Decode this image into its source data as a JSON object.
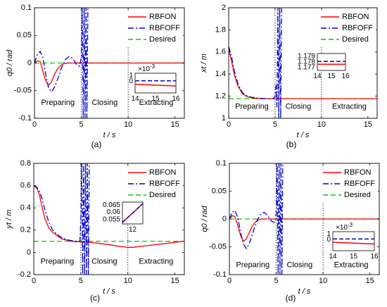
{
  "legend_labels": [
    "RBFON",
    "RBFOFF",
    "Desired"
  ],
  "colors": {
    "rbfon": "#ff0000",
    "rbfoff": "#0000cc",
    "desired": "#00cc00",
    "axis": "#000000"
  },
  "chart_data": [
    {
      "type": "line",
      "panel_label": "(a)",
      "xlabel": "t / s",
      "ylabel": "q0 / rad",
      "xlim": [
        0,
        16
      ],
      "ylim": [
        -0.1,
        0.1
      ],
      "xticks": [
        0,
        5,
        10,
        15
      ],
      "yticks": [
        -0.1,
        -0.05,
        0,
        0.05,
        0.1
      ],
      "ytick_labels": [
        "-0.1",
        "-0.05",
        "0",
        "0.05",
        "0.1"
      ],
      "phase_lines": [
        5,
        10
      ],
      "phases": [
        {
          "label": "Preparing",
          "x": 2.5,
          "y": -0.072
        },
        {
          "label": "Closing",
          "x": 7.5,
          "y": -0.072
        },
        {
          "label": "Extracting",
          "x": 13.0,
          "y": -0.072
        }
      ],
      "legend": "top-right",
      "series": [
        {
          "name": "RBFON",
          "style": "solid",
          "color": "#ff0000",
          "x": [
            0,
            0.3,
            0.6,
            0.9,
            1.2,
            1.5,
            1.8,
            2.1,
            2.4,
            2.8,
            3.2,
            3.5,
            3.8,
            4.2,
            4.6,
            5.0,
            5.5,
            6,
            8,
            10,
            12,
            14,
            16
          ],
          "y": [
            0,
            0.004,
            0.003,
            -0.015,
            -0.032,
            -0.04,
            -0.035,
            -0.022,
            -0.012,
            -0.004,
            -0.001,
            0,
            0,
            0,
            0,
            0,
            0,
            0,
            0,
            0,
            0,
            0,
            0
          ]
        },
        {
          "name": "RBFOFF",
          "style": "dashdot",
          "color": "#0000cc",
          "x": [
            0,
            0.3,
            0.6,
            0.9,
            1.2,
            1.5,
            1.8,
            2.1,
            2.5,
            2.9,
            3.3,
            3.7,
            4.1,
            4.5,
            4.8,
            5.0,
            5.1,
            5.2,
            5.3,
            5.4,
            5.5,
            5.6,
            5.7,
            5.75
          ],
          "y": [
            0,
            0.015,
            0.021,
            0.01,
            -0.02,
            -0.045,
            -0.052,
            -0.045,
            -0.028,
            -0.008,
            0.006,
            0.012,
            0.008,
            -0.003,
            -0.006,
            0.01,
            0.1,
            -0.1,
            0.1,
            -0.1,
            0.1,
            -0.1,
            0.1,
            0.1
          ]
        },
        {
          "name": "Desired",
          "style": "dashed",
          "color": "#00cc00",
          "x": [
            0,
            16
          ],
          "y": [
            0,
            0
          ]
        }
      ],
      "inset": {
        "xlim": [
          14,
          16
        ],
        "ylim": [
          -2,
          1.4
        ],
        "xticks": [
          14,
          15,
          16
        ],
        "yticks": [
          0,
          1
        ],
        "exponent": "×10^-3",
        "series": [
          {
            "name": "RBFON",
            "x": [
              14,
              16
            ],
            "y": [
              -0.5,
              -0.8
            ]
          },
          {
            "name": "RBFOFF",
            "x": [
              14,
              16
            ],
            "y": [
              0.1,
              0.1
            ]
          }
        ]
      }
    },
    {
      "type": "line",
      "panel_label": "(b)",
      "xlabel": "t / s",
      "ylabel": "xt / m",
      "xlim": [
        0,
        16
      ],
      "ylim": [
        1,
        2
      ],
      "xticks": [
        0,
        5,
        10,
        15
      ],
      "yticks": [
        1,
        1.2,
        1.4,
        1.6,
        1.8,
        2
      ],
      "ytick_labels": [
        "1",
        "1.2",
        "1.4",
        "1.6",
        "1.8",
        "2"
      ],
      "phase_lines": [
        5,
        10
      ],
      "phases": [
        {
          "label": "Preparing",
          "x": 2.5,
          "y": 1.105
        },
        {
          "label": "Closing",
          "x": 7.5,
          "y": 1.105
        },
        {
          "label": "Extracting",
          "x": 13.0,
          "y": 1.105
        }
      ],
      "legend": "top-right",
      "series": [
        {
          "name": "RBFON",
          "style": "solid",
          "color": "#ff0000",
          "x": [
            0,
            0.3,
            0.6,
            1.0,
            1.5,
            2.0,
            2.5,
            3.0,
            3.5,
            4.0,
            5.0,
            6,
            8,
            10,
            12,
            14,
            16
          ],
          "y": [
            1.62,
            1.52,
            1.4,
            1.29,
            1.22,
            1.195,
            1.185,
            1.18,
            1.178,
            1.178,
            1.178,
            1.178,
            1.178,
            1.178,
            1.178,
            1.178,
            1.178
          ]
        },
        {
          "name": "RBFOFF",
          "style": "dashdot",
          "color": "#0000cc",
          "x": [
            0,
            0.3,
            0.6,
            1.0,
            1.5,
            2.0,
            2.5,
            3.0,
            3.5,
            4.0,
            4.8,
            5.0,
            5.1,
            5.2,
            5.3,
            5.4,
            5.5,
            5.6,
            5.7,
            5.75
          ],
          "y": [
            1.65,
            1.56,
            1.43,
            1.31,
            1.23,
            1.2,
            1.19,
            1.185,
            1.18,
            1.178,
            1.178,
            1.2,
            1.3,
            1.1,
            2,
            1,
            2,
            1,
            2,
            2
          ]
        },
        {
          "name": "Desired",
          "style": "dashed",
          "color": "#00cc00",
          "x": [
            0,
            16
          ],
          "y": [
            1.178,
            1.178
          ]
        }
      ],
      "inset": {
        "xlim": [
          14,
          16
        ],
        "ylim": [
          1.1765,
          1.1795
        ],
        "xticks": [
          14,
          15,
          16
        ],
        "yticks": [
          1.177,
          1.178,
          1.179
        ],
        "ytick_labels": [
          "1.177",
          "1.178",
          "1.179"
        ],
        "series": [
          {
            "name": "RBFON",
            "x": [
              14,
              16
            ],
            "y": [
              1.1776,
              1.1776
            ]
          },
          {
            "name": "RBFOFF",
            "x": [
              14,
              16
            ],
            "y": [
              1.1781,
              1.1781
            ]
          }
        ]
      }
    },
    {
      "type": "line",
      "panel_label": "(c)",
      "xlabel": "t / s",
      "ylabel": "yt / m",
      "xlim": [
        0,
        16
      ],
      "ylim": [
        -0.2,
        0.8
      ],
      "xticks": [
        0,
        5,
        10,
        15
      ],
      "yticks": [
        -0.2,
        0,
        0.2,
        0.4,
        0.6,
        0.8
      ],
      "ytick_labels": [
        "-0.2",
        "0",
        "0.2",
        "0.4",
        "0.6",
        "0.8"
      ],
      "phase_lines": [
        5,
        10
      ],
      "phases": [
        {
          "label": "Preparing",
          "x": 2.5,
          "y": -0.085
        },
        {
          "label": "Closing",
          "x": 7.5,
          "y": -0.085
        },
        {
          "label": "Extracting",
          "x": 13.0,
          "y": -0.085
        }
      ],
      "legend": "top-right",
      "series": [
        {
          "name": "RBFON",
          "style": "solid",
          "color": "#ff0000",
          "x": [
            0,
            0.3,
            0.6,
            0.9,
            1.2,
            1.6,
            2.0,
            2.5,
            3.0,
            3.5,
            4.0,
            4.5,
            5.0,
            6,
            7,
            8,
            9,
            10,
            10.5,
            12,
            14,
            16
          ],
          "y": [
            0.6,
            0.58,
            0.52,
            0.4,
            0.3,
            0.22,
            0.18,
            0.15,
            0.12,
            0.11,
            0.1,
            0.095,
            0.095,
            0.09,
            0.08,
            0.07,
            0.055,
            0.045,
            0.045,
            0.06,
            0.08,
            0.1
          ]
        },
        {
          "name": "RBFOFF",
          "style": "dashdot",
          "color": "#0000cc",
          "x": [
            0,
            0.3,
            0.6,
            0.9,
            1.2,
            1.6,
            2.0,
            2.5,
            3.0,
            3.5,
            4.0,
            4.5,
            4.9,
            5.0,
            5.1,
            5.2,
            5.3,
            5.4,
            5.5,
            5.6,
            5.7,
            5.8,
            5.9
          ],
          "y": [
            0.6,
            0.59,
            0.55,
            0.48,
            0.38,
            0.27,
            0.2,
            0.16,
            0.13,
            0.115,
            0.105,
            0.1,
            0.1,
            0.3,
            0.8,
            -0.2,
            0.8,
            -0.2,
            0.8,
            -0.2,
            0.8,
            -0.2,
            0.8
          ]
        },
        {
          "name": "Desired",
          "style": "dashed",
          "color": "#00cc00",
          "x": [
            0,
            16
          ],
          "y": [
            0.1,
            0.1
          ]
        }
      ],
      "inset": {
        "xlim": [
          11.6,
          12.4
        ],
        "ylim": [
          0.052,
          0.067
        ],
        "xticks": [
          12
        ],
        "yticks": [
          0.055,
          0.06,
          0.065
        ],
        "ytick_labels": [
          "0.055",
          "0.06",
          "0.065"
        ],
        "series": [
          {
            "name": "RBFON",
            "x": [
              11.6,
              12.4
            ],
            "y": [
              0.053,
              0.066
            ]
          },
          {
            "name": "RBFOFF",
            "x": [
              11.6,
              12.4
            ],
            "y": [
              0.053,
              0.066
            ]
          }
        ]
      }
    },
    {
      "type": "line",
      "panel_label": "(d)",
      "xlabel": "t / s",
      "ylabel": "q0 / rad",
      "xlim": [
        0,
        16
      ],
      "ylim": [
        -0.1,
        0.1
      ],
      "xticks": [
        0,
        5,
        10,
        15
      ],
      "yticks": [
        -0.1,
        -0.05,
        0,
        0.05,
        0.1
      ],
      "ytick_labels": [
        "-0.1",
        "-0.05",
        "0",
        "0.05",
        "0.1"
      ],
      "phase_lines": [
        5,
        10
      ],
      "phases": [
        {
          "label": "Preparing",
          "x": 2.5,
          "y": -0.083
        },
        {
          "label": "Closing",
          "x": 7.5,
          "y": -0.083
        },
        {
          "label": "Extracting",
          "x": 13.0,
          "y": -0.083
        }
      ],
      "legend": "top-right",
      "series": [
        {
          "name": "RBFON",
          "style": "solid",
          "color": "#ff0000",
          "x": [
            0,
            0.3,
            0.6,
            0.9,
            1.2,
            1.5,
            1.8,
            2.1,
            2.4,
            2.8,
            3.2,
            3.5,
            3.8,
            4.2,
            4.6,
            5.0,
            5.5,
            6,
            8,
            10,
            12,
            14,
            16
          ],
          "y": [
            0,
            0.006,
            0.004,
            -0.012,
            -0.03,
            -0.04,
            -0.036,
            -0.025,
            -0.014,
            -0.005,
            -0.001,
            0,
            0,
            0,
            0,
            0,
            0,
            0,
            0,
            0,
            0,
            0,
            0
          ]
        },
        {
          "name": "RBFOFF",
          "style": "dashdot",
          "color": "#0000cc",
          "x": [
            0,
            0.3,
            0.6,
            0.9,
            1.2,
            1.5,
            1.8,
            2.1,
            2.5,
            2.9,
            3.3,
            3.7,
            4.1,
            4.5,
            4.8,
            5.0,
            5.1,
            5.2,
            5.3,
            5.4,
            5.5,
            5.6,
            5.7,
            5.75
          ],
          "y": [
            0,
            0.012,
            0.015,
            0.002,
            -0.025,
            -0.045,
            -0.053,
            -0.045,
            -0.025,
            -0.005,
            0.008,
            0.012,
            0.006,
            -0.004,
            -0.006,
            0.01,
            0.1,
            -0.1,
            0.1,
            -0.1,
            0.1,
            -0.1,
            0.1,
            0.1
          ]
        },
        {
          "name": "Desired",
          "style": "dashed",
          "color": "#00cc00",
          "x": [
            0,
            16
          ],
          "y": [
            0,
            0
          ]
        }
      ],
      "inset": {
        "xlim": [
          14,
          16
        ],
        "ylim": [
          -2,
          1.4
        ],
        "xticks": [
          14,
          15,
          16
        ],
        "yticks": [
          0,
          1
        ],
        "exponent": "×10^-3",
        "series": [
          {
            "name": "RBFON",
            "x": [
              14,
              16
            ],
            "y": [
              -0.5,
              -0.8
            ]
          },
          {
            "name": "RBFOFF",
            "x": [
              14,
              16
            ],
            "y": [
              0.1,
              0.1
            ]
          }
        ]
      }
    }
  ]
}
